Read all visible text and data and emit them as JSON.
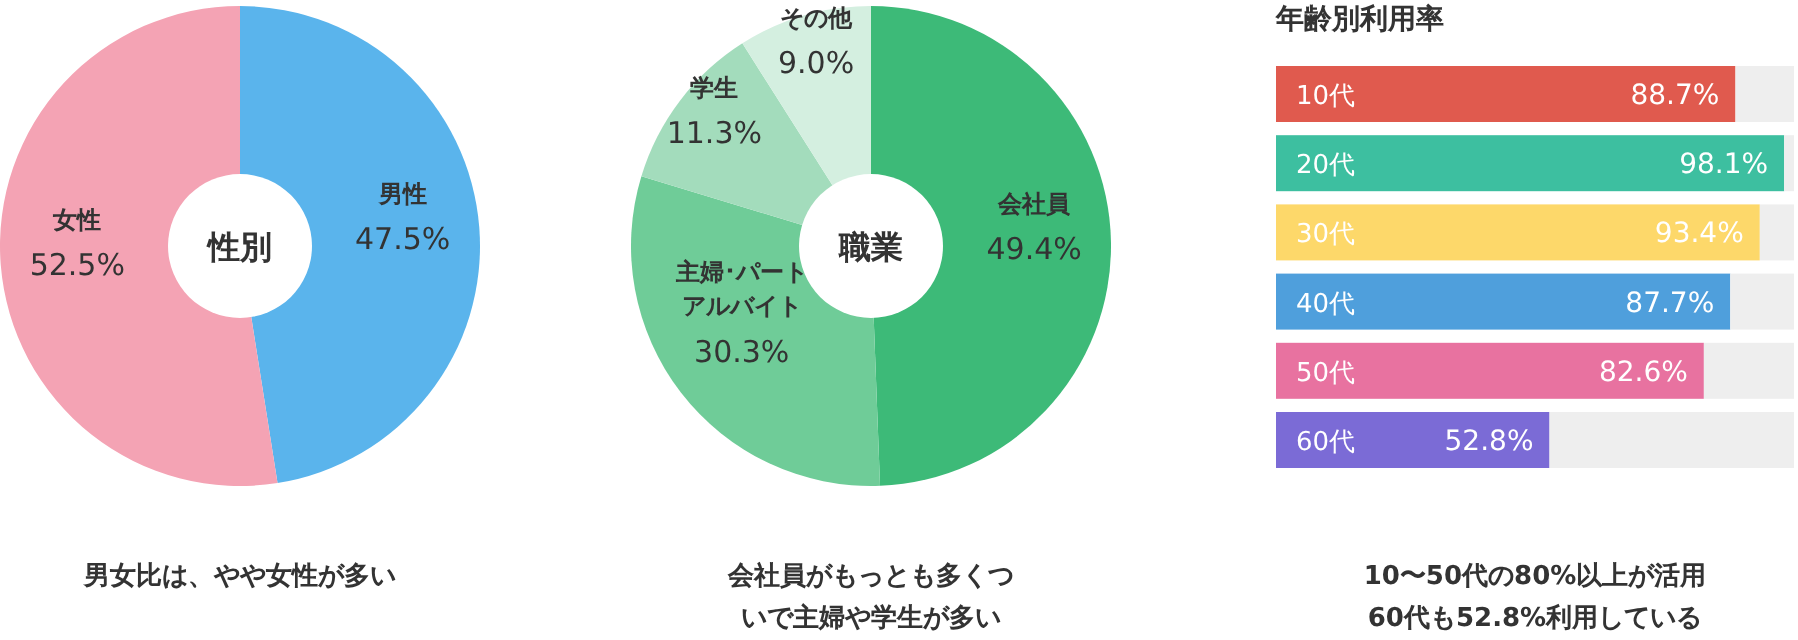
{
  "chart_data": [
    {
      "type": "donut",
      "title": "性別",
      "categories": [
        "男性",
        "女性"
      ],
      "values": [
        47.5,
        52.5
      ],
      "colors": [
        "#5ab4ec",
        "#f4a3b4"
      ],
      "value_labels": [
        "47.5%",
        "52.5%"
      ],
      "annotations": [
        "男女比は、やや女性が多い"
      ]
    },
    {
      "type": "donut",
      "title": "職業",
      "categories": [
        "会社員",
        "主婦･パートアルバイト",
        "学生",
        "その他"
      ],
      "values": [
        49.4,
        30.3,
        11.3,
        9.0
      ],
      "colors": [
        "#3dba78",
        "#6fcc98",
        "#a3dcbc",
        "#d4efe0"
      ],
      "value_labels": [
        "49.4%",
        "30.3%",
        "11.3%",
        "9.0%"
      ],
      "annotations": [
        "会社員がもっとも多くついで主婦や学生が多い"
      ]
    },
    {
      "type": "bar",
      "orientation": "horizontal",
      "stacked": true,
      "title": "年齢別利用率",
      "categories": [
        "10代",
        "20代",
        "30代",
        "40代",
        "50代",
        "60代"
      ],
      "xlim": [
        0,
        100
      ],
      "series": [
        {
          "colors": [
            "#e05a4e",
            "#3dbfa0",
            "#fdd86a",
            "#4f9fdc",
            "#e872a0",
            "#7b6bd6"
          ],
          "values": [
            88.7,
            98.1,
            93.4,
            87.7,
            82.6,
            52.8
          ],
          "value_labels": [
            "88.7%",
            "98.1%",
            "93.4%",
            "87.7%",
            "82.6%",
            "52.8%"
          ]
        },
        {
          "color": "#eeeeee",
          "values": [
            11.3,
            1.9,
            6.6,
            12.3,
            17.4,
            47.2
          ]
        }
      ],
      "annotations": [
        "10〜50代の80%以上が活用60代も52.8%利用している"
      ]
    }
  ]
}
